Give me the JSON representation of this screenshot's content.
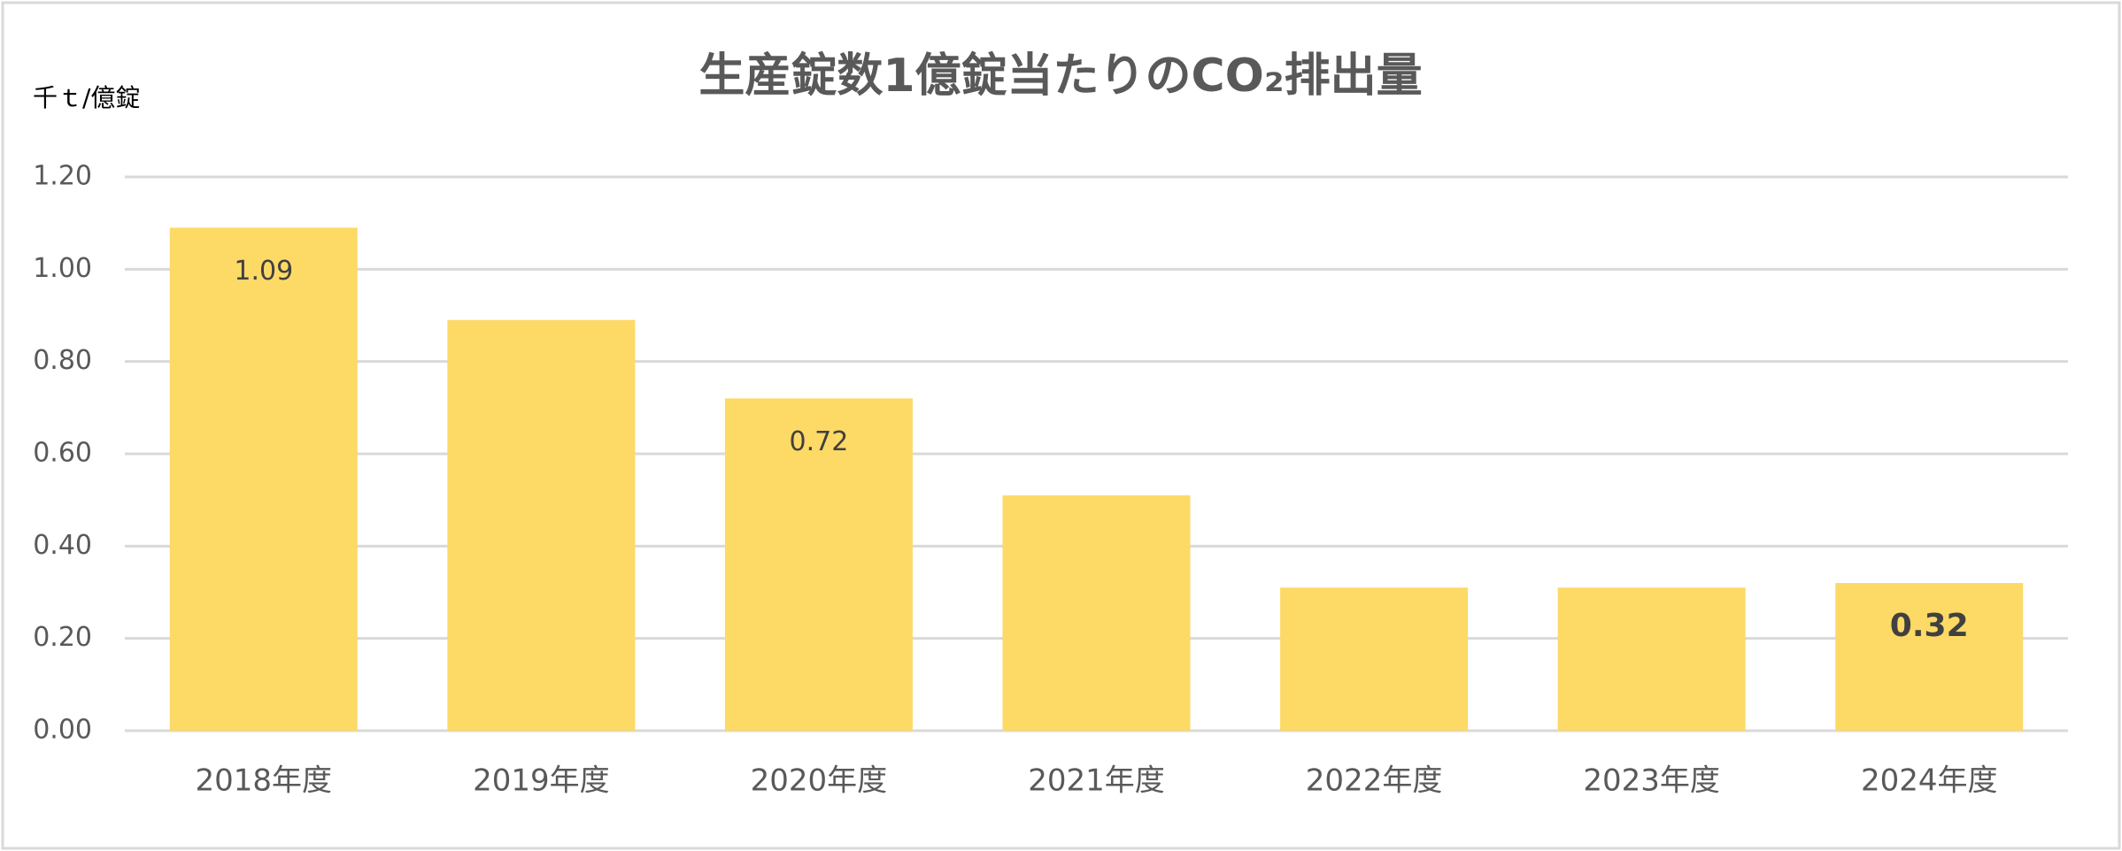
{
  "chart_data": {
    "type": "bar",
    "title": "生産錠数1億錠当たりのCO₂排出量",
    "y_axis_label": "千ｔ/億錠",
    "categories": [
      "2018年度",
      "2019年度",
      "2020年度",
      "2021年度",
      "2022年度",
      "2023年度",
      "2024年度"
    ],
    "values": [
      1.09,
      0.89,
      0.72,
      0.51,
      0.31,
      0.31,
      0.32
    ],
    "show_labels": [
      true,
      false,
      true,
      false,
      false,
      false,
      true
    ],
    "bold_labels": [
      false,
      false,
      false,
      false,
      false,
      false,
      true
    ],
    "color": "#FDD966",
    "ylim": [
      0,
      1.2
    ],
    "yticks": [
      {
        "value": 0,
        "label": "0.00"
      },
      {
        "value": 0.2,
        "label": "0.20"
      },
      {
        "value": 0.4,
        "label": "0.40"
      },
      {
        "value": 0.6,
        "label": "0.60"
      },
      {
        "value": 0.8,
        "label": "0.80"
      },
      {
        "value": 1,
        "label": "1.00"
      },
      {
        "value": 1.2,
        "label": "1.20"
      }
    ],
    "grid": true
  }
}
